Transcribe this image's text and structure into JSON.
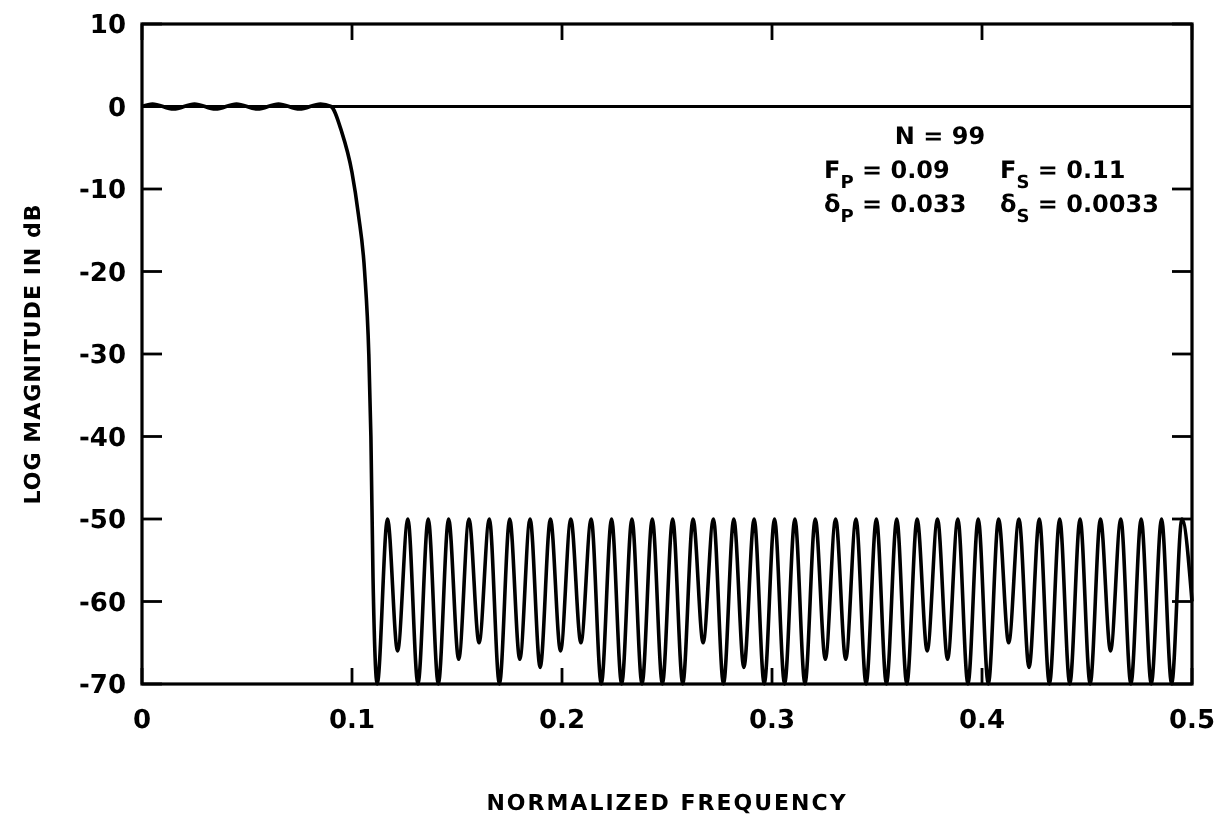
{
  "chart_data": {
    "type": "line",
    "xlabel": "NORMALIZED FREQUENCY",
    "ylabel": "LOG MAGNITUDE IN dB",
    "xlim": [
      0,
      0.5
    ],
    "ylim": [
      -70,
      10
    ],
    "xticks": [
      0,
      0.1,
      0.2,
      0.3,
      0.4,
      0.5
    ],
    "yticks": [
      10,
      0,
      -10,
      -20,
      -30,
      -40,
      -50,
      -60,
      -70
    ],
    "grid": false,
    "marker": "none",
    "line_style": "solid",
    "ref_lines": [
      {
        "axis": "y",
        "value": 0,
        "color": "#000000"
      }
    ],
    "annotations": [
      "N = 99",
      "F$_{P}$ = 0.09",
      "F$_{S}$ = 0.11",
      "δ$_{P}$ = 0.033",
      "δ$_{S}$ = 0.0033"
    ],
    "series": [
      {
        "color": "#000000",
        "x": [
          0,
          0.005,
          0.015,
          0.025,
          0.035,
          0.045,
          0.055,
          0.065,
          0.075,
          0.085,
          0.09,
          0.095,
          0.1,
          0.103,
          0.106,
          0.108,
          0.109,
          0.11,
          0.112,
          0.1169,
          0.1217,
          0.1266,
          0.1314,
          0.1363,
          0.1411,
          0.146,
          0.1508,
          0.1557,
          0.1605,
          0.1654,
          0.1702,
          0.1751,
          0.1799,
          0.1848,
          0.1896,
          0.1945,
          0.1993,
          0.2042,
          0.209,
          0.2139,
          0.2187,
          0.2236,
          0.2284,
          0.2333,
          0.2381,
          0.243,
          0.2478,
          0.2527,
          0.2575,
          0.2624,
          0.2672,
          0.2721,
          0.2769,
          0.2818,
          0.2866,
          0.2915,
          0.2963,
          0.3012,
          0.306,
          0.3109,
          0.3157,
          0.3206,
          0.3254,
          0.3303,
          0.3351,
          0.34,
          0.3448,
          0.3497,
          0.3545,
          0.3594,
          0.3642,
          0.3691,
          0.3739,
          0.3788,
          0.3836,
          0.3885,
          0.3933,
          0.3982,
          0.403,
          0.4079,
          0.4127,
          0.4176,
          0.4224,
          0.4273,
          0.4321,
          0.437,
          0.4418,
          0.4467,
          0.4515,
          0.4564,
          0.4612,
          0.4661,
          0.4709,
          0.4758,
          0.4806,
          0.4855,
          0.4903,
          0.4952,
          0.5
        ],
        "values": [
          0,
          0.3,
          -0.3,
          0.3,
          -0.3,
          0.3,
          -0.3,
          0.3,
          -0.3,
          0.3,
          0,
          -3,
          -8,
          -13,
          -20,
          -30,
          -40,
          -57,
          -70,
          -50,
          -66,
          -50,
          -70,
          -50,
          -70,
          -50,
          -67,
          -50,
          -65,
          -50,
          -70,
          -50,
          -67,
          -50,
          -68,
          -50,
          -66,
          -50,
          -65,
          -50,
          -70,
          -50,
          -70,
          -50,
          -70,
          -50,
          -70,
          -50,
          -70,
          -50,
          -65,
          -50,
          -70,
          -50,
          -68,
          -50,
          -70,
          -50,
          -70,
          -50,
          -70,
          -50,
          -67,
          -50,
          -67,
          -50,
          -70,
          -50,
          -70,
          -50,
          -70,
          -50,
          -66,
          -50,
          -67,
          -50,
          -70,
          -50,
          -70,
          -50,
          -65,
          -50,
          -68,
          -50,
          -70,
          -50,
          -70,
          -50,
          -70,
          -50,
          -66,
          -50,
          -70,
          -50,
          -70,
          -50,
          -70,
          -50,
          -60
        ]
      }
    ]
  }
}
